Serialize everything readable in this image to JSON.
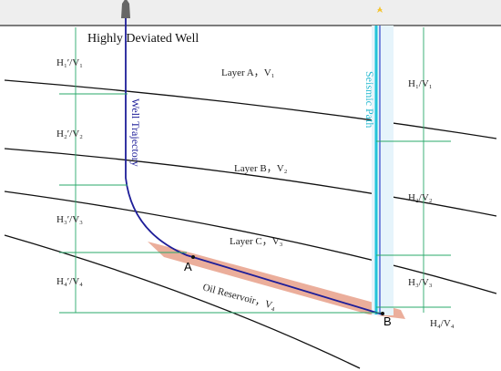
{
  "title": "Highly Deviated Well",
  "well_label": "Well Trajectory",
  "seismic_label": "Seismic Path",
  "layers": [
    "Layer A，V₁",
    "Layer B，V₂",
    "Layer C，V₃",
    "Oil Reservoir，V₄"
  ],
  "points": [
    "A",
    "B"
  ],
  "left_labels": [
    "H₁′/V₁",
    "H₂′/V₂",
    "H₃′/V₃",
    "H₄′/V₄"
  ],
  "right_labels": [
    "H₁/V₁",
    "H₂/V₂",
    "H₃/V₃",
    "H₄/V₄"
  ]
}
